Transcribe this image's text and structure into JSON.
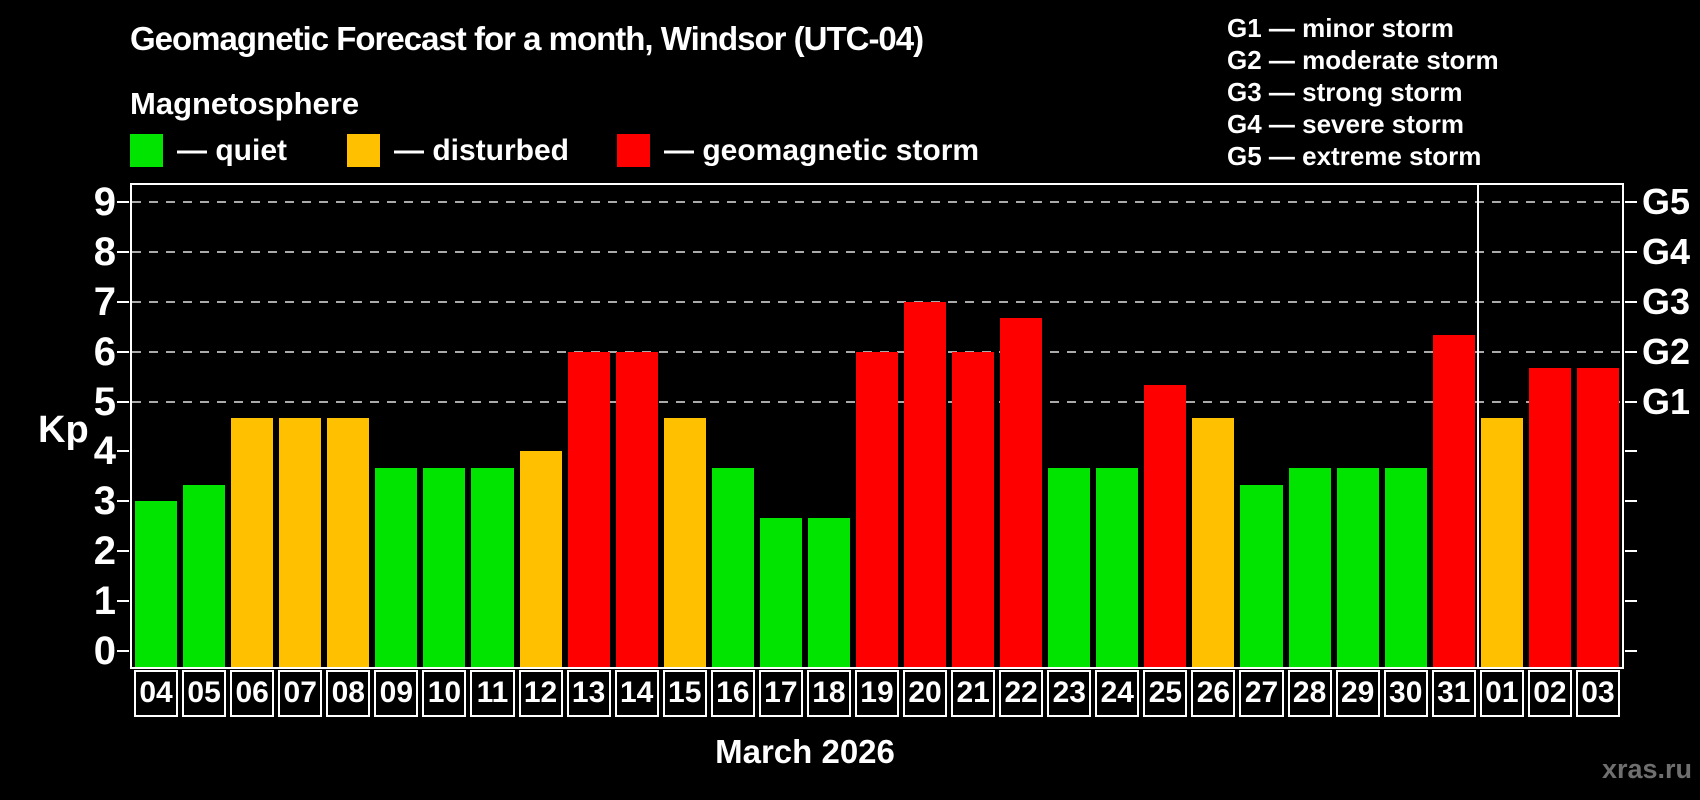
{
  "title": "Geomagnetic Forecast for a month, Windsor (UTC-04)",
  "subtitle": "Magnetosphere",
  "legend": {
    "quiet": "— quiet",
    "disturbed": "— disturbed",
    "storm": "— geomagnetic storm"
  },
  "g_legend": {
    "items": [
      "G1 — minor storm",
      "G2 — moderate storm",
      "G3 — strong storm",
      "G4 — severe storm",
      "G5 — extreme storm"
    ]
  },
  "colors": {
    "quiet": "#00e400",
    "disturbed": "#ffc000",
    "storm": "#ff0000",
    "grid": "#aaaaaa",
    "axis": "#ffffff",
    "watermark": "#6f6f6f"
  },
  "axis": {
    "ylabel": "Kp",
    "yticks": [
      0,
      1,
      2,
      3,
      4,
      5,
      6,
      7,
      8,
      9
    ]
  },
  "month_label": "March 2026",
  "watermark": "xras.ru",
  "chart_data": {
    "type": "bar",
    "title": "Geomagnetic Forecast for a month, Windsor (UTC-04)",
    "subtitle": "Magnetosphere",
    "xlabel": "March 2026",
    "ylabel": "Kp",
    "ylim": [
      0,
      9
    ],
    "grid_on": true,
    "gridline_kp": [
      5,
      6,
      7,
      8,
      9
    ],
    "categories": [
      "04",
      "05",
      "06",
      "07",
      "08",
      "09",
      "10",
      "11",
      "12",
      "13",
      "14",
      "15",
      "16",
      "17",
      "18",
      "19",
      "20",
      "21",
      "22",
      "23",
      "24",
      "25",
      "26",
      "27",
      "28",
      "29",
      "30",
      "31",
      "01",
      "02",
      "03"
    ],
    "values": [
      3.0,
      3.33,
      4.67,
      4.67,
      4.67,
      3.67,
      3.67,
      3.67,
      4.0,
      6.0,
      6.0,
      4.67,
      3.67,
      2.67,
      2.67,
      6.0,
      7.0,
      6.0,
      6.67,
      3.67,
      3.67,
      5.33,
      4.67,
      3.33,
      3.67,
      3.67,
      3.67,
      6.33,
      4.67,
      5.67,
      5.67
    ],
    "status": [
      "quiet",
      "quiet",
      "disturbed",
      "disturbed",
      "disturbed",
      "quiet",
      "quiet",
      "quiet",
      "disturbed",
      "storm",
      "storm",
      "disturbed",
      "quiet",
      "quiet",
      "quiet",
      "storm",
      "storm",
      "storm",
      "storm",
      "quiet",
      "quiet",
      "storm",
      "disturbed",
      "quiet",
      "quiet",
      "quiet",
      "quiet",
      "storm",
      "disturbed",
      "storm",
      "storm"
    ],
    "status_legend": {
      "quiet": "green",
      "disturbed": "orange",
      "storm": "red"
    },
    "divider_after_index": 27,
    "g_scale": {
      "G1": 5,
      "G2": 6,
      "G3": 7,
      "G4": 8,
      "G5": 9
    }
  }
}
